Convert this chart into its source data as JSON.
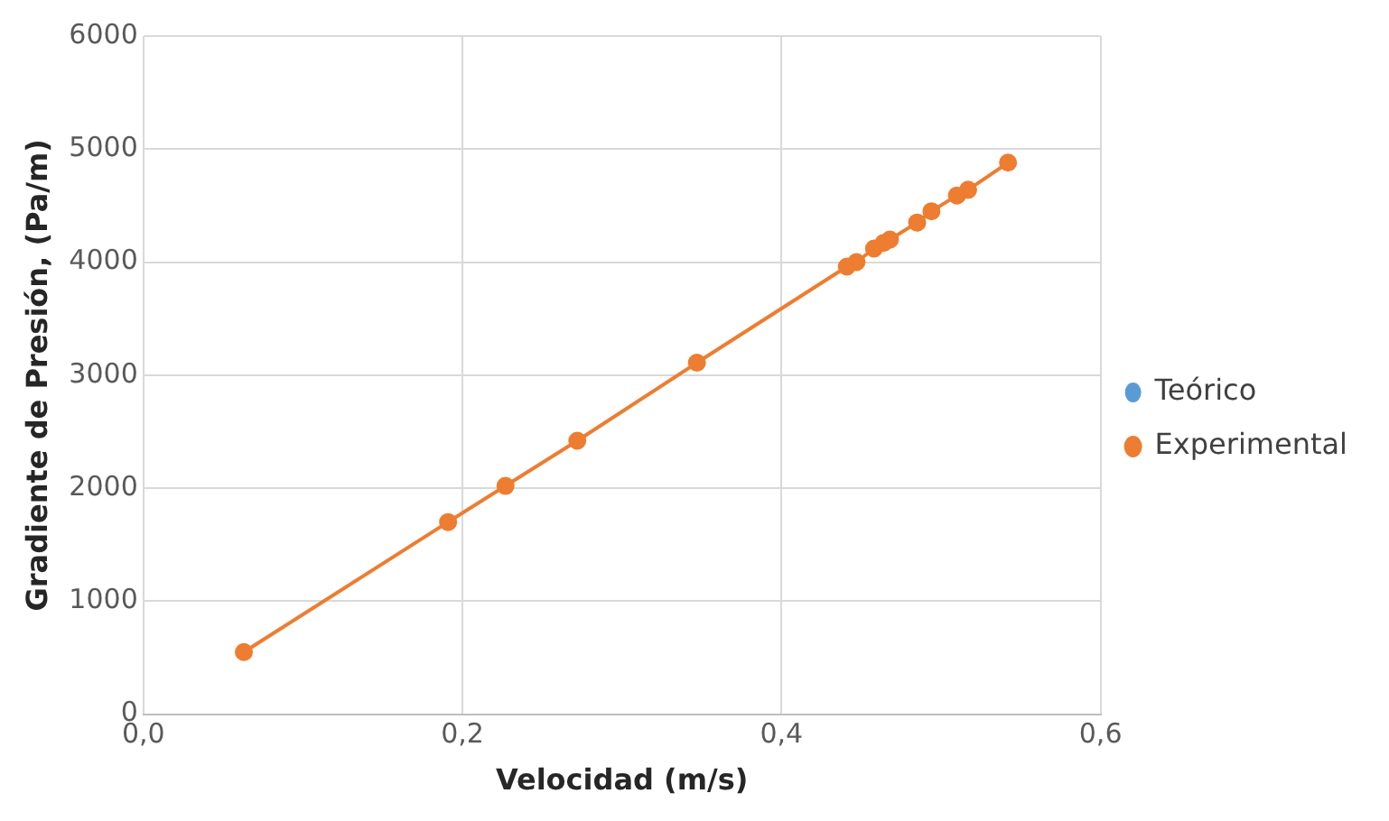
{
  "chart_data": {
    "type": "line",
    "xlabel": "Velocidad (m/s)",
    "ylabel": "Gradiente de Presión, (Pa/m)",
    "x": [
      0.063,
      0.191,
      0.227,
      0.272,
      0.347,
      0.441,
      0.447,
      0.458,
      0.464,
      0.468,
      0.485,
      0.494,
      0.51,
      0.517,
      0.542
    ],
    "series": [
      {
        "name": "Teórico",
        "color": "#5b9bd5",
        "type": "scatter",
        "values": [
          null,
          null,
          null,
          null,
          null,
          null,
          null,
          null,
          null,
          null,
          null,
          null,
          null,
          null,
          null
        ]
      },
      {
        "name": "Experimental",
        "color": "#ed7d31",
        "values": [
          550,
          1700,
          2020,
          2420,
          3110,
          3960,
          4000,
          4120,
          4170,
          4200,
          4350,
          4450,
          4590,
          4640,
          4880
        ]
      }
    ],
    "xlim": [
      0,
      0.6
    ],
    "xticks": [
      {
        "value": 0,
        "label": "0,0"
      },
      {
        "value": 0.2,
        "label": "0,2"
      },
      {
        "value": 0.4,
        "label": "0,4"
      },
      {
        "value": 0.6,
        "label": "0,6"
      }
    ],
    "ylim": [
      0,
      6000
    ],
    "yticks": [
      0,
      1000,
      2000,
      3000,
      4000,
      5000,
      6000
    ],
    "grid": true,
    "legend": "right",
    "marker": "circle"
  }
}
